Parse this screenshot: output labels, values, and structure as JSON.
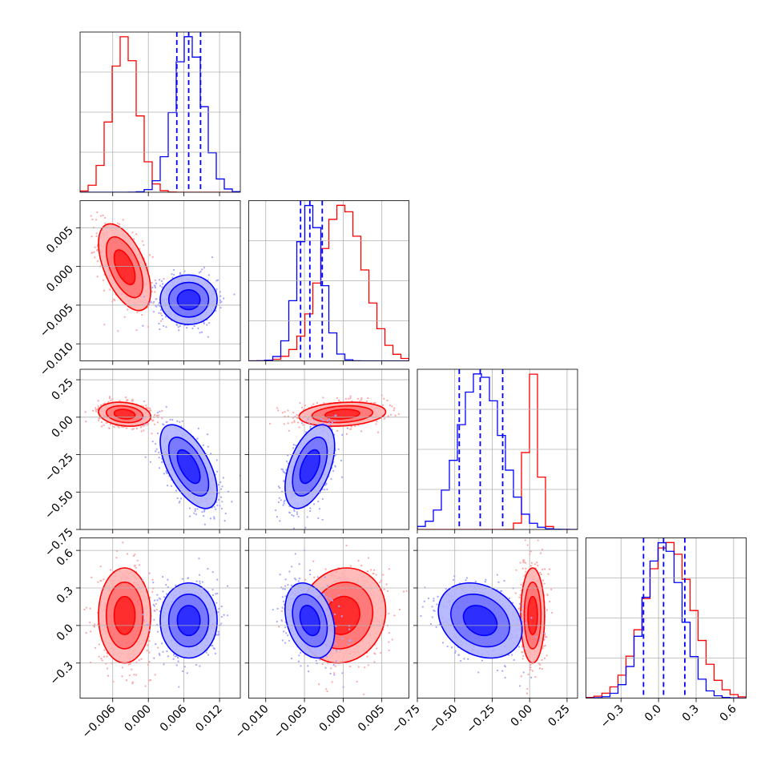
{
  "colors": {
    "red": "#ff0000",
    "blue": "#0000ff"
  },
  "chart_data": {
    "type": "corner",
    "grid": true,
    "quantile_lines": {
      "color": "#0000ff",
      "style": "dashed"
    },
    "variables": [
      {
        "range": [
          -0.0115,
          0.0155
        ],
        "ticks": [
          -0.006,
          0.0,
          0.006,
          0.012
        ],
        "tick_labels": [
          "−0.006",
          "0.000",
          "0.006",
          "0.012"
        ]
      },
      {
        "range": [
          -0.0122,
          0.0085
        ],
        "ticks": [
          -0.01,
          -0.005,
          0.0,
          0.005
        ],
        "tick_labels": [
          "−0.010",
          "−0.005",
          "0.000",
          "0.005"
        ]
      },
      {
        "range": [
          -0.75,
          0.32
        ],
        "ticks": [
          -0.75,
          -0.5,
          -0.25,
          0.0,
          0.25
        ],
        "tick_labels": [
          "−0.75",
          "−0.50",
          "−0.25",
          "0.00",
          "0.25"
        ]
      },
      {
        "range": [
          -0.58,
          0.7
        ],
        "ticks": [
          -0.3,
          0.0,
          0.3,
          0.6
        ],
        "tick_labels": [
          "−0.3",
          "0.0",
          "0.3",
          "0.6"
        ]
      }
    ],
    "series": [
      {
        "color": "#ff0000",
        "mean": [
          -0.004,
          -0.0001,
          0.02,
          0.08
        ],
        "sd": [
          0.0022,
          0.0028,
          0.04,
          0.19
        ],
        "corr": [
          [
            0,
            1,
            -0.55
          ],
          [
            0,
            2,
            -0.2
          ],
          [
            1,
            2,
            0.2
          ],
          [
            1,
            3,
            0.1
          ]
        ]
      },
      {
        "color": "#0000ff",
        "mean": [
          0.0068,
          -0.0043,
          -0.33,
          0.04
        ],
        "sd": [
          0.0024,
          0.0016,
          0.14,
          0.15
        ],
        "corr": [
          [
            0,
            2,
            -0.6
          ],
          [
            1,
            2,
            0.5
          ],
          [
            1,
            3,
            -0.3
          ],
          [
            2,
            3,
            -0.25
          ]
        ]
      }
    ],
    "quantiles": [
      [
        0.0048,
        0.0068,
        0.0088
      ],
      [
        -0.0055,
        -0.0043,
        -0.0027
      ],
      [
        -0.47,
        -0.33,
        -0.18
      ],
      [
        -0.12,
        0.04,
        0.21
      ]
    ]
  }
}
